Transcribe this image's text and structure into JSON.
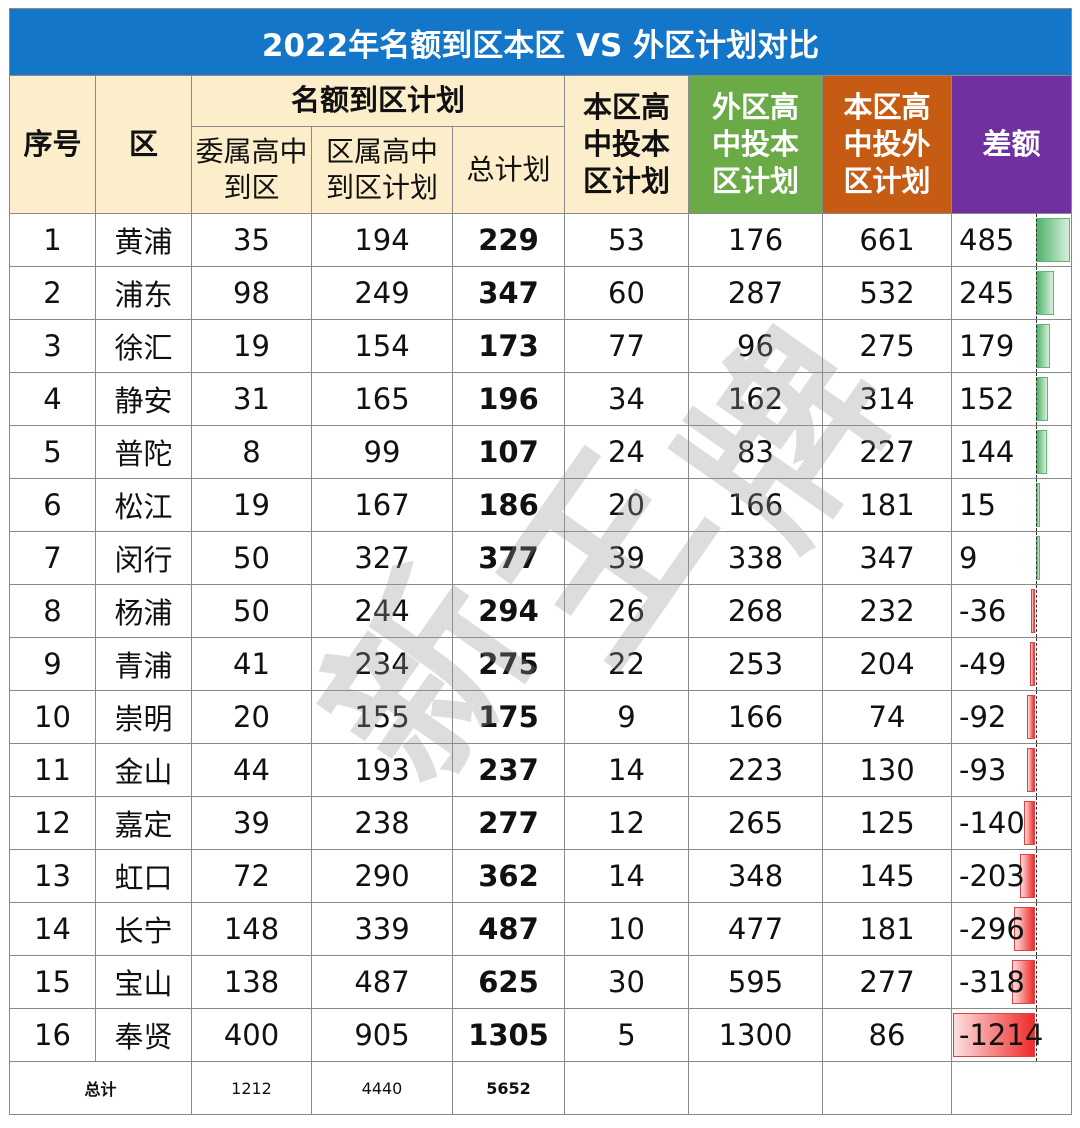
{
  "title": "2022年名额到区本区 VS 外区计划对比",
  "headers": {
    "index": "序号",
    "district": "区",
    "quota_group": "名额到区计划",
    "quota_city": "委属高中到区",
    "quota_district": "区属高中到区计划",
    "quota_total": "总计划",
    "local_into_local": "本区高中投本区计划",
    "other_into_local": "外区高中投本区计划",
    "local_into_other": "本区高中投外区计划",
    "diff": "差额"
  },
  "rows": [
    {
      "no": "1",
      "district": "黄浦",
      "city": "35",
      "dist": "194",
      "total": "229",
      "local": "53",
      "outside_in": "176",
      "local_out": "661",
      "diff": "485"
    },
    {
      "no": "2",
      "district": "浦东",
      "city": "98",
      "dist": "249",
      "total": "347",
      "local": "60",
      "outside_in": "287",
      "local_out": "532",
      "diff": "245"
    },
    {
      "no": "3",
      "district": "徐汇",
      "city": "19",
      "dist": "154",
      "total": "173",
      "local": "77",
      "outside_in": "96",
      "local_out": "275",
      "diff": "179"
    },
    {
      "no": "4",
      "district": "静安",
      "city": "31",
      "dist": "165",
      "total": "196",
      "local": "34",
      "outside_in": "162",
      "local_out": "314",
      "diff": "152"
    },
    {
      "no": "5",
      "district": "普陀",
      "city": "8",
      "dist": "99",
      "total": "107",
      "local": "24",
      "outside_in": "83",
      "local_out": "227",
      "diff": "144"
    },
    {
      "no": "6",
      "district": "松江",
      "city": "19",
      "dist": "167",
      "total": "186",
      "local": "20",
      "outside_in": "166",
      "local_out": "181",
      "diff": "15"
    },
    {
      "no": "7",
      "district": "闵行",
      "city": "50",
      "dist": "327",
      "total": "377",
      "local": "39",
      "outside_in": "338",
      "local_out": "347",
      "diff": "9"
    },
    {
      "no": "8",
      "district": "杨浦",
      "city": "50",
      "dist": "244",
      "total": "294",
      "local": "26",
      "outside_in": "268",
      "local_out": "232",
      "diff": "-36"
    },
    {
      "no": "9",
      "district": "青浦",
      "city": "41",
      "dist": "234",
      "total": "275",
      "local": "22",
      "outside_in": "253",
      "local_out": "204",
      "diff": "-49"
    },
    {
      "no": "10",
      "district": "崇明",
      "city": "20",
      "dist": "155",
      "total": "175",
      "local": "9",
      "outside_in": "166",
      "local_out": "74",
      "diff": "-92"
    },
    {
      "no": "11",
      "district": "金山",
      "city": "44",
      "dist": "193",
      "total": "237",
      "local": "14",
      "outside_in": "223",
      "local_out": "130",
      "diff": "-93"
    },
    {
      "no": "12",
      "district": "嘉定",
      "city": "39",
      "dist": "238",
      "total": "277",
      "local": "12",
      "outside_in": "265",
      "local_out": "125",
      "diff": "-140"
    },
    {
      "no": "13",
      "district": "虹口",
      "city": "72",
      "dist": "290",
      "total": "362",
      "local": "14",
      "outside_in": "348",
      "local_out": "145",
      "diff": "-203"
    },
    {
      "no": "14",
      "district": "长宁",
      "city": "148",
      "dist": "339",
      "total": "487",
      "local": "10",
      "outside_in": "477",
      "local_out": "181",
      "diff": "-296"
    },
    {
      "no": "15",
      "district": "宝山",
      "city": "138",
      "dist": "487",
      "total": "625",
      "local": "30",
      "outside_in": "595",
      "local_out": "277",
      "diff": "-318"
    },
    {
      "no": "16",
      "district": "奉贤",
      "city": "400",
      "dist": "905",
      "total": "1305",
      "local": "5",
      "outside_in": "1300",
      "local_out": "86",
      "diff": "-1214"
    }
  ],
  "totals": {
    "label": "总计",
    "city": "1212",
    "dist": "4440",
    "total": "5652"
  },
  "watermark": "新王牌",
  "colors": {
    "title_bg": "#1376c8",
    "header_cream": "#fdeecb",
    "header_green": "#6aaa47",
    "header_orange": "#c65b14",
    "header_purple": "#7030a0",
    "bar_positive": "#4fb46a",
    "bar_negative": "#ef2a2a"
  }
}
